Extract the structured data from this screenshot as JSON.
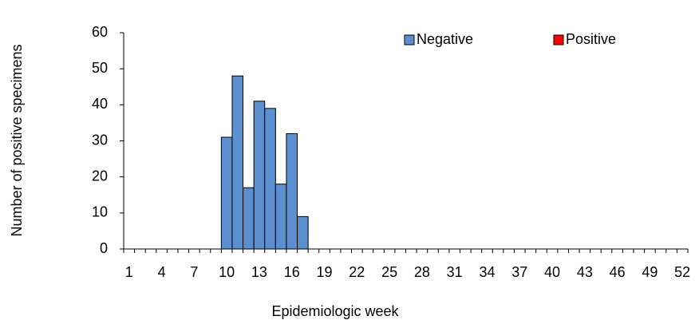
{
  "chart_data": {
    "type": "bar",
    "stacked": true,
    "x_label": "Epidemiologic week",
    "y_label": "Number of positive specimens",
    "categories": [
      1,
      null,
      null,
      4,
      null,
      null,
      7,
      null,
      null,
      10,
      null,
      null,
      13,
      null,
      null,
      16,
      null,
      null,
      19,
      null,
      null,
      22,
      null,
      null,
      25,
      null,
      null,
      28,
      null,
      null,
      31,
      null,
      null,
      34,
      null,
      null,
      37,
      null,
      null,
      40,
      null,
      null,
      43,
      null,
      null,
      46,
      null,
      null,
      49,
      null,
      null,
      52
    ],
    "series": [
      {
        "name": "Negative",
        "color": "#5b8fd0",
        "values": [
          0,
          0,
          0,
          0,
          0,
          0,
          0,
          0,
          0,
          31,
          48,
          17,
          41,
          39,
          18,
          32,
          9,
          0,
          0,
          0,
          0,
          0,
          0,
          0,
          0,
          0,
          0,
          0,
          0,
          0,
          0,
          0,
          0,
          0,
          0,
          0,
          0,
          0,
          0,
          0,
          0,
          0,
          0,
          0,
          0,
          0,
          0,
          0,
          0,
          0,
          0,
          0
        ]
      },
      {
        "name": "Positive",
        "color": "#ff0000",
        "values": [
          0,
          0,
          0,
          0,
          0,
          0,
          0,
          0,
          0,
          0,
          0,
          0,
          0,
          0,
          0,
          0,
          0,
          0,
          0,
          0,
          0,
          0,
          0,
          0,
          0,
          0,
          0,
          0,
          0,
          0,
          0,
          0,
          0,
          0,
          0,
          0,
          0,
          0,
          0,
          0,
          0,
          0,
          0,
          0,
          0,
          0,
          0,
          0,
          0,
          0,
          0,
          0
        ]
      }
    ],
    "ylim": [
      0,
      60
    ],
    "yticks": [
      0,
      10,
      20,
      30,
      40,
      50,
      60
    ],
    "grid": false,
    "legend": "top-right"
  }
}
